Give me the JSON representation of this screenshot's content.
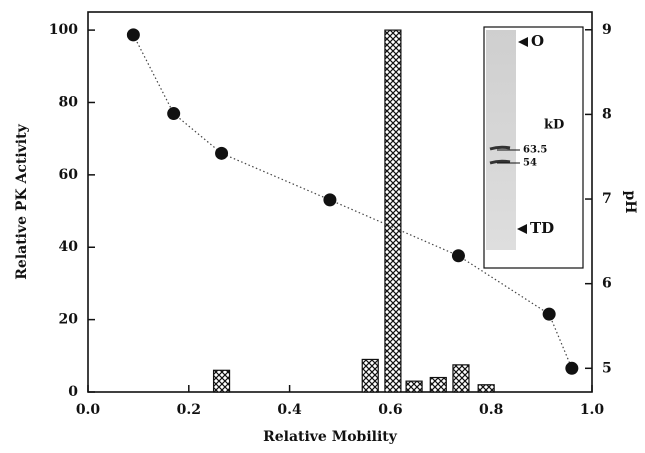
{
  "chart_data": {
    "type": "bar",
    "xlabel": "Relative Mobility",
    "ylabel": "Relative PK Activity",
    "y2label": "pH",
    "x": [
      0.265,
      0.56,
      0.605,
      0.647,
      0.695,
      0.74,
      0.79
    ],
    "values": [
      6,
      9,
      100,
      3,
      4,
      7.5,
      2
    ],
    "xlim": [
      0,
      1
    ],
    "xticks": [
      {
        "value": 0,
        "label": "0.0"
      },
      0.2,
      0.4,
      0.6,
      0.8,
      {
        "value": 1,
        "label": "1.0"
      }
    ],
    "ylim": [
      0,
      105
    ],
    "yticks": [
      0,
      20,
      40,
      60,
      80,
      100
    ],
    "y2lim": [
      4.72,
      9.21
    ],
    "y2ticks": [
      5,
      6,
      7,
      8,
      9
    ],
    "overlay": {
      "type": "line",
      "axis": "y2",
      "x": [
        0.09,
        0.17,
        0.265,
        0.48,
        0.735,
        0.915,
        0.96
      ],
      "values": [
        8.94,
        8.01,
        7.54,
        6.99,
        6.33,
        5.64,
        5.0
      ]
    },
    "annotations": [
      "O",
      "kD",
      "63.5",
      "54",
      "TD"
    ]
  }
}
